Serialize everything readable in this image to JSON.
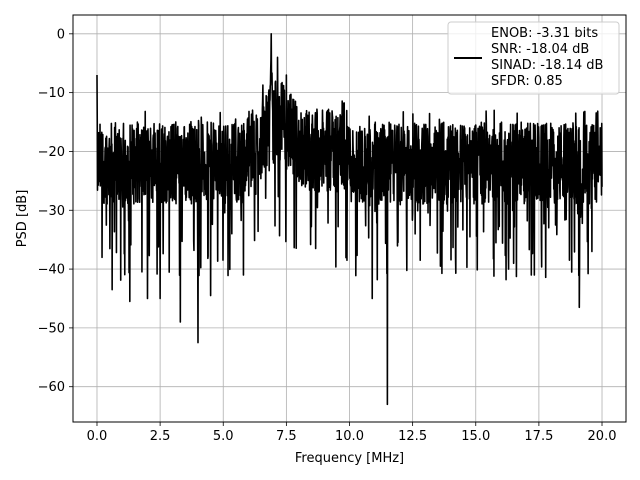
{
  "chart_data": {
    "type": "line",
    "title": "",
    "xlabel": "Frequency [MHz]",
    "ylabel": "PSD [dB]",
    "xlim": [
      -0.95,
      20.95
    ],
    "ylim": [
      -66,
      3.2
    ],
    "x_ticks": [
      0.0,
      2.5,
      5.0,
      7.5,
      10.0,
      12.5,
      15.0,
      17.5,
      20.0
    ],
    "x_tick_labels": [
      "0.0",
      "2.5",
      "5.0",
      "7.5",
      "10.0",
      "12.5",
      "15.0",
      "17.5",
      "20.0"
    ],
    "y_ticks": [
      0,
      -10,
      -20,
      -30,
      -40,
      -50,
      -60
    ],
    "y_tick_labels": [
      "0",
      "−10",
      "−20",
      "−30",
      "−40",
      "−50",
      "−60"
    ],
    "grid": true,
    "legend_position": "top-right",
    "series": [
      {
        "color": "#000000",
        "x_range": [
          0.0,
          20.0
        ],
        "noise_floor_db": -22,
        "peaks": [
          {
            "x": 0.0,
            "y": -7
          },
          {
            "x": 6.9,
            "y": 0
          },
          {
            "x": 7.15,
            "y": -4
          },
          {
            "x": 7.5,
            "y": -7
          }
        ],
        "dips": [
          {
            "x": 0.2,
            "y": -38
          },
          {
            "x": 0.6,
            "y": -43.5
          },
          {
            "x": 1.3,
            "y": -45.5
          },
          {
            "x": 2.0,
            "y": -45
          },
          {
            "x": 2.5,
            "y": -45
          },
          {
            "x": 3.3,
            "y": -49
          },
          {
            "x": 4.0,
            "y": -52.5
          },
          {
            "x": 4.5,
            "y": -44.5
          },
          {
            "x": 5.8,
            "y": -41
          },
          {
            "x": 9.9,
            "y": -38.5
          },
          {
            "x": 10.9,
            "y": -45
          },
          {
            "x": 11.5,
            "y": -63
          },
          {
            "x": 12.8,
            "y": -38.5
          },
          {
            "x": 13.6,
            "y": -39.5
          },
          {
            "x": 14.2,
            "y": -38
          },
          {
            "x": 16.3,
            "y": -40
          },
          {
            "x": 17.2,
            "y": -41
          },
          {
            "x": 18.8,
            "y": -40.5
          },
          {
            "x": 19.1,
            "y": -46.5
          },
          {
            "x": 19.6,
            "y": -37
          }
        ]
      }
    ],
    "legend": {
      "lines": [
        "ENOB: -3.31 bits",
        "SNR: -18.04 dB",
        "SINAD: -18.14 dB",
        "SFDR: 0.85"
      ]
    }
  }
}
